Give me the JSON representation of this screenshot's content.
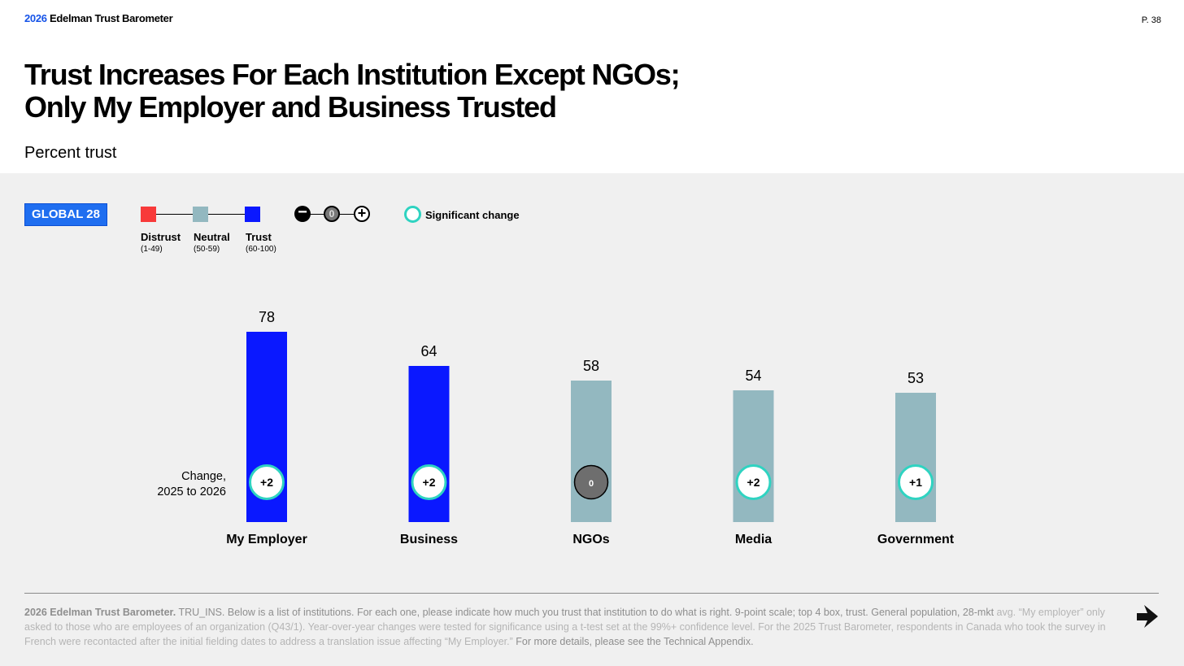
{
  "header": {
    "brand_year": "2026",
    "brand_name": " Edelman Trust Barometer",
    "page_number": "P. 38"
  },
  "title_line1": "Trust Increases For Each Institution Except NGOs;",
  "title_line2": "Only My Employer and Business Trusted",
  "subtitle": "Percent trust",
  "legend": {
    "badge": "GLOBAL 28",
    "scale": [
      {
        "label": "Distrust",
        "range": "(1-49)",
        "color": "#f83a3a"
      },
      {
        "label": "Neutral",
        "range": "(50-59)",
        "color": "#93b8c0"
      },
      {
        "label": "Trust",
        "range": "(60-100)",
        "color": "#0a18ff"
      }
    ],
    "change_icons": [
      "minus-icon",
      "zero-icon",
      "plus-icon"
    ],
    "change_symbols": {
      "minus": "−",
      "zero": "0",
      "plus": "+"
    },
    "significant_label": "Significant change"
  },
  "chart_data": {
    "type": "bar",
    "categories": [
      "My Employer",
      "Business",
      "NGOs",
      "Media",
      "Government"
    ],
    "values": [
      78,
      64,
      58,
      54,
      53
    ],
    "changes": [
      "+2",
      "+2",
      "0",
      "+2",
      "+1"
    ],
    "significant": [
      true,
      true,
      false,
      true,
      true
    ],
    "trust_level": [
      "Trust",
      "Trust",
      "Neutral",
      "Neutral",
      "Neutral"
    ],
    "change_label_line1": "Change,",
    "change_label_line2": "2025 to 2026",
    "colors": {
      "trust": "#0a18ff",
      "neutral": "#93b8c0",
      "significant_ring": "#2fd3c1",
      "nonsignificant_fill": "#6e6e6e"
    }
  },
  "footer": {
    "bold": "2026 Edelman Trust Barometer.",
    "text": " TRU_INS. Below is a list of institutions. For each one, please indicate how much you trust that institution to do what is right. 9-point scale; top 4 box, trust. General population, 28-mkt ",
    "light1": "avg. “My employer” only asked to those who are employees of an organization (Q43/1). Year-over-year changes were tested for significance using a t-test set at the 99%+ confidence level. For the 2025 Trust Barometer, respondents in Canada who took the survey in French were recontacted after the initial fielding dates to address a translation issue affecting “My Employer.”",
    "tail": " For more details, please see the Technical Appendix.",
    "next_icon": "arrow-right-icon"
  }
}
